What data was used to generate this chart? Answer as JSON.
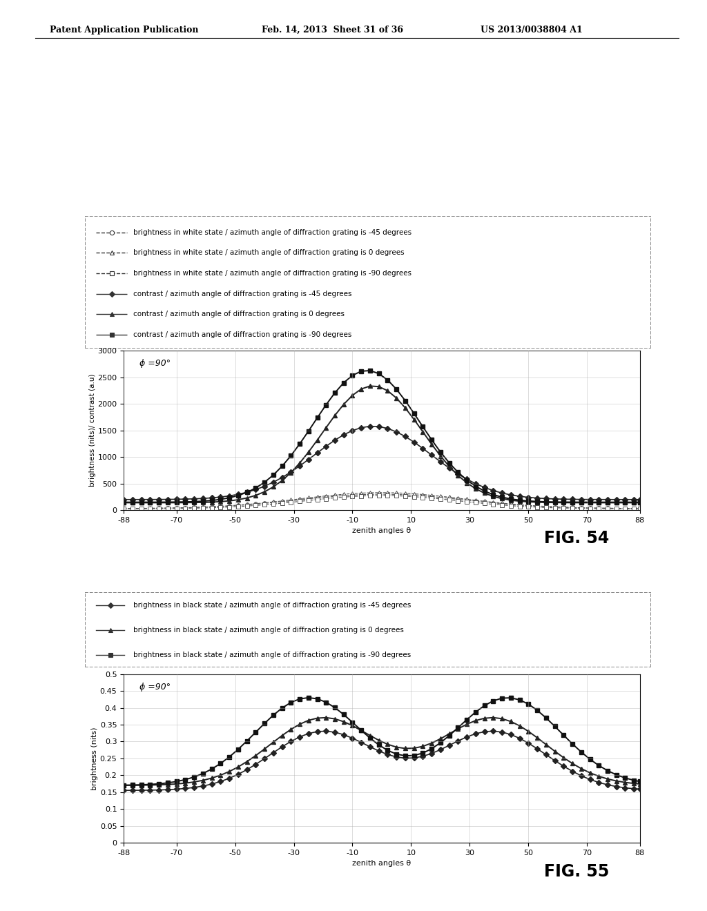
{
  "header_left": "Patent Application Publication",
  "header_mid": "Feb. 14, 2013  Sheet 31 of 36",
  "header_right": "US 2013/0038804 A1",
  "fig54": {
    "title_inside": "ϕ =90°",
    "ylabel": "brightness (nits)/ contrast (a.u)",
    "xlabel": "zenith angles θ",
    "xlim": [
      -88,
      88
    ],
    "ylim": [
      0,
      3000
    ],
    "yticks": [
      0,
      500,
      1000,
      1500,
      2000,
      2500,
      3000
    ],
    "xticks": [
      -88,
      -70,
      -50,
      -30,
      -10,
      10,
      30,
      50,
      70,
      88
    ],
    "fig_label": "FIG. 54",
    "legend": [
      {
        "label": "brightness in white state / azimuth angle of diffraction grating is -45 degrees",
        "marker": "o",
        "ls": "--"
      },
      {
        "label": "brightness in white state / azimuth angle of diffraction grating is 0 degrees",
        "marker": "^",
        "ls": "--"
      },
      {
        "label": "brightness in white state / azimuth angle of diffraction grating is -90 degrees",
        "marker": "s",
        "ls": "--"
      },
      {
        "label": "contrast / azimuth angle of diffraction grating is -45 degrees",
        "marker": "D",
        "ls": "-"
      },
      {
        "label": "contrast / azimuth angle of diffraction grating is 0 degrees",
        "marker": "^",
        "ls": "-"
      },
      {
        "label": "contrast / azimuth angle of diffraction grating is -90 degrees",
        "marker": "s",
        "ls": "-"
      }
    ]
  },
  "fig55": {
    "title_inside": "ϕ =90°",
    "ylabel": "brightness (nits)",
    "xlabel": "zenith angles θ",
    "xlim": [
      -88,
      88
    ],
    "ylim": [
      0,
      0.5
    ],
    "yticks": [
      0,
      0.05,
      0.1,
      0.15,
      0.2,
      0.25,
      0.3,
      0.35,
      0.4,
      0.45,
      0.5
    ],
    "xticks": [
      -88,
      -70,
      -50,
      -30,
      -10,
      10,
      30,
      50,
      70,
      88
    ],
    "fig_label": "FIG. 55",
    "legend": [
      {
        "label": "brightness in black state / azimuth angle of diffraction grating is -45 degrees",
        "marker": "D",
        "ls": "-"
      },
      {
        "label": "brightness in black state / azimuth angle of diffraction grating is 0 degrees",
        "marker": "^",
        "ls": "-"
      },
      {
        "label": "brightness in black state / azimuth angle of diffraction grating is -90 degrees",
        "marker": "s",
        "ls": "-"
      }
    ]
  }
}
